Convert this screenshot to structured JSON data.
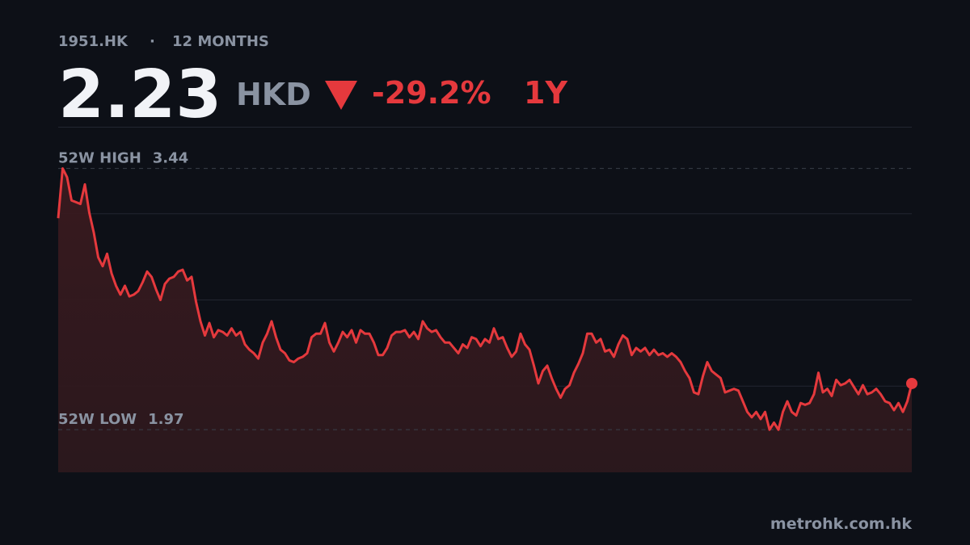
{
  "header": {
    "ticker": "1951.HK",
    "separator": "·",
    "period": "12 MONTHS",
    "price": 2.23,
    "currency": "HKD",
    "change": {
      "value": -29.2,
      "label": "-29.2%"
    },
    "range": "1Y"
  },
  "chart_data": {
    "type": "line",
    "color": "#e5393d",
    "ylim": [
      1.73,
      3.67
    ],
    "grid": true,
    "high": {
      "label": "52W HIGH",
      "value": 3.44
    },
    "low": {
      "label": "52W LOW",
      "value": 1.97
    },
    "values": [
      3.16,
      3.44,
      3.39,
      3.26,
      3.25,
      3.24,
      3.35,
      3.19,
      3.08,
      2.94,
      2.89,
      2.96,
      2.85,
      2.78,
      2.73,
      2.78,
      2.72,
      2.73,
      2.75,
      2.8,
      2.86,
      2.83,
      2.76,
      2.7,
      2.79,
      2.82,
      2.83,
      2.86,
      2.87,
      2.81,
      2.83,
      2.69,
      2.58,
      2.5,
      2.57,
      2.49,
      2.53,
      2.52,
      2.5,
      2.54,
      2.5,
      2.52,
      2.45,
      2.42,
      2.4,
      2.37,
      2.46,
      2.51,
      2.58,
      2.49,
      2.42,
      2.4,
      2.36,
      2.35,
      2.37,
      2.38,
      2.4,
      2.49,
      2.51,
      2.51,
      2.57,
      2.46,
      2.41,
      2.46,
      2.52,
      2.49,
      2.53,
      2.46,
      2.53,
      2.51,
      2.51,
      2.46,
      2.39,
      2.39,
      2.43,
      2.5,
      2.52,
      2.52,
      2.53,
      2.49,
      2.52,
      2.48,
      2.58,
      2.54,
      2.52,
      2.53,
      2.49,
      2.46,
      2.46,
      2.43,
      2.4,
      2.45,
      2.43,
      2.49,
      2.48,
      2.44,
      2.48,
      2.46,
      2.54,
      2.48,
      2.49,
      2.43,
      2.38,
      2.41,
      2.51,
      2.45,
      2.42,
      2.33,
      2.23,
      2.3,
      2.33,
      2.26,
      2.2,
      2.15,
      2.2,
      2.22,
      2.29,
      2.34,
      2.4,
      2.51,
      2.51,
      2.46,
      2.48,
      2.41,
      2.42,
      2.38,
      2.45,
      2.5,
      2.48,
      2.39,
      2.43,
      2.41,
      2.43,
      2.39,
      2.42,
      2.39,
      2.4,
      2.38,
      2.4,
      2.38,
      2.35,
      2.3,
      2.26,
      2.18,
      2.17,
      2.27,
      2.35,
      2.3,
      2.28,
      2.26,
      2.18,
      2.19,
      2.2,
      2.19,
      2.13,
      2.07,
      2.04,
      2.07,
      2.03,
      2.07,
      1.97,
      2.01,
      1.97,
      2.07,
      2.13,
      2.07,
      2.05,
      2.12,
      2.11,
      2.12,
      2.17,
      2.29,
      2.18,
      2.2,
      2.16,
      2.25,
      2.22,
      2.23,
      2.25,
      2.21,
      2.17,
      2.22,
      2.17,
      2.18,
      2.2,
      2.17,
      2.13,
      2.12,
      2.08,
      2.12,
      2.07,
      2.13,
      2.23
    ]
  },
  "footer": {
    "source": "metrohk.com.hk"
  }
}
